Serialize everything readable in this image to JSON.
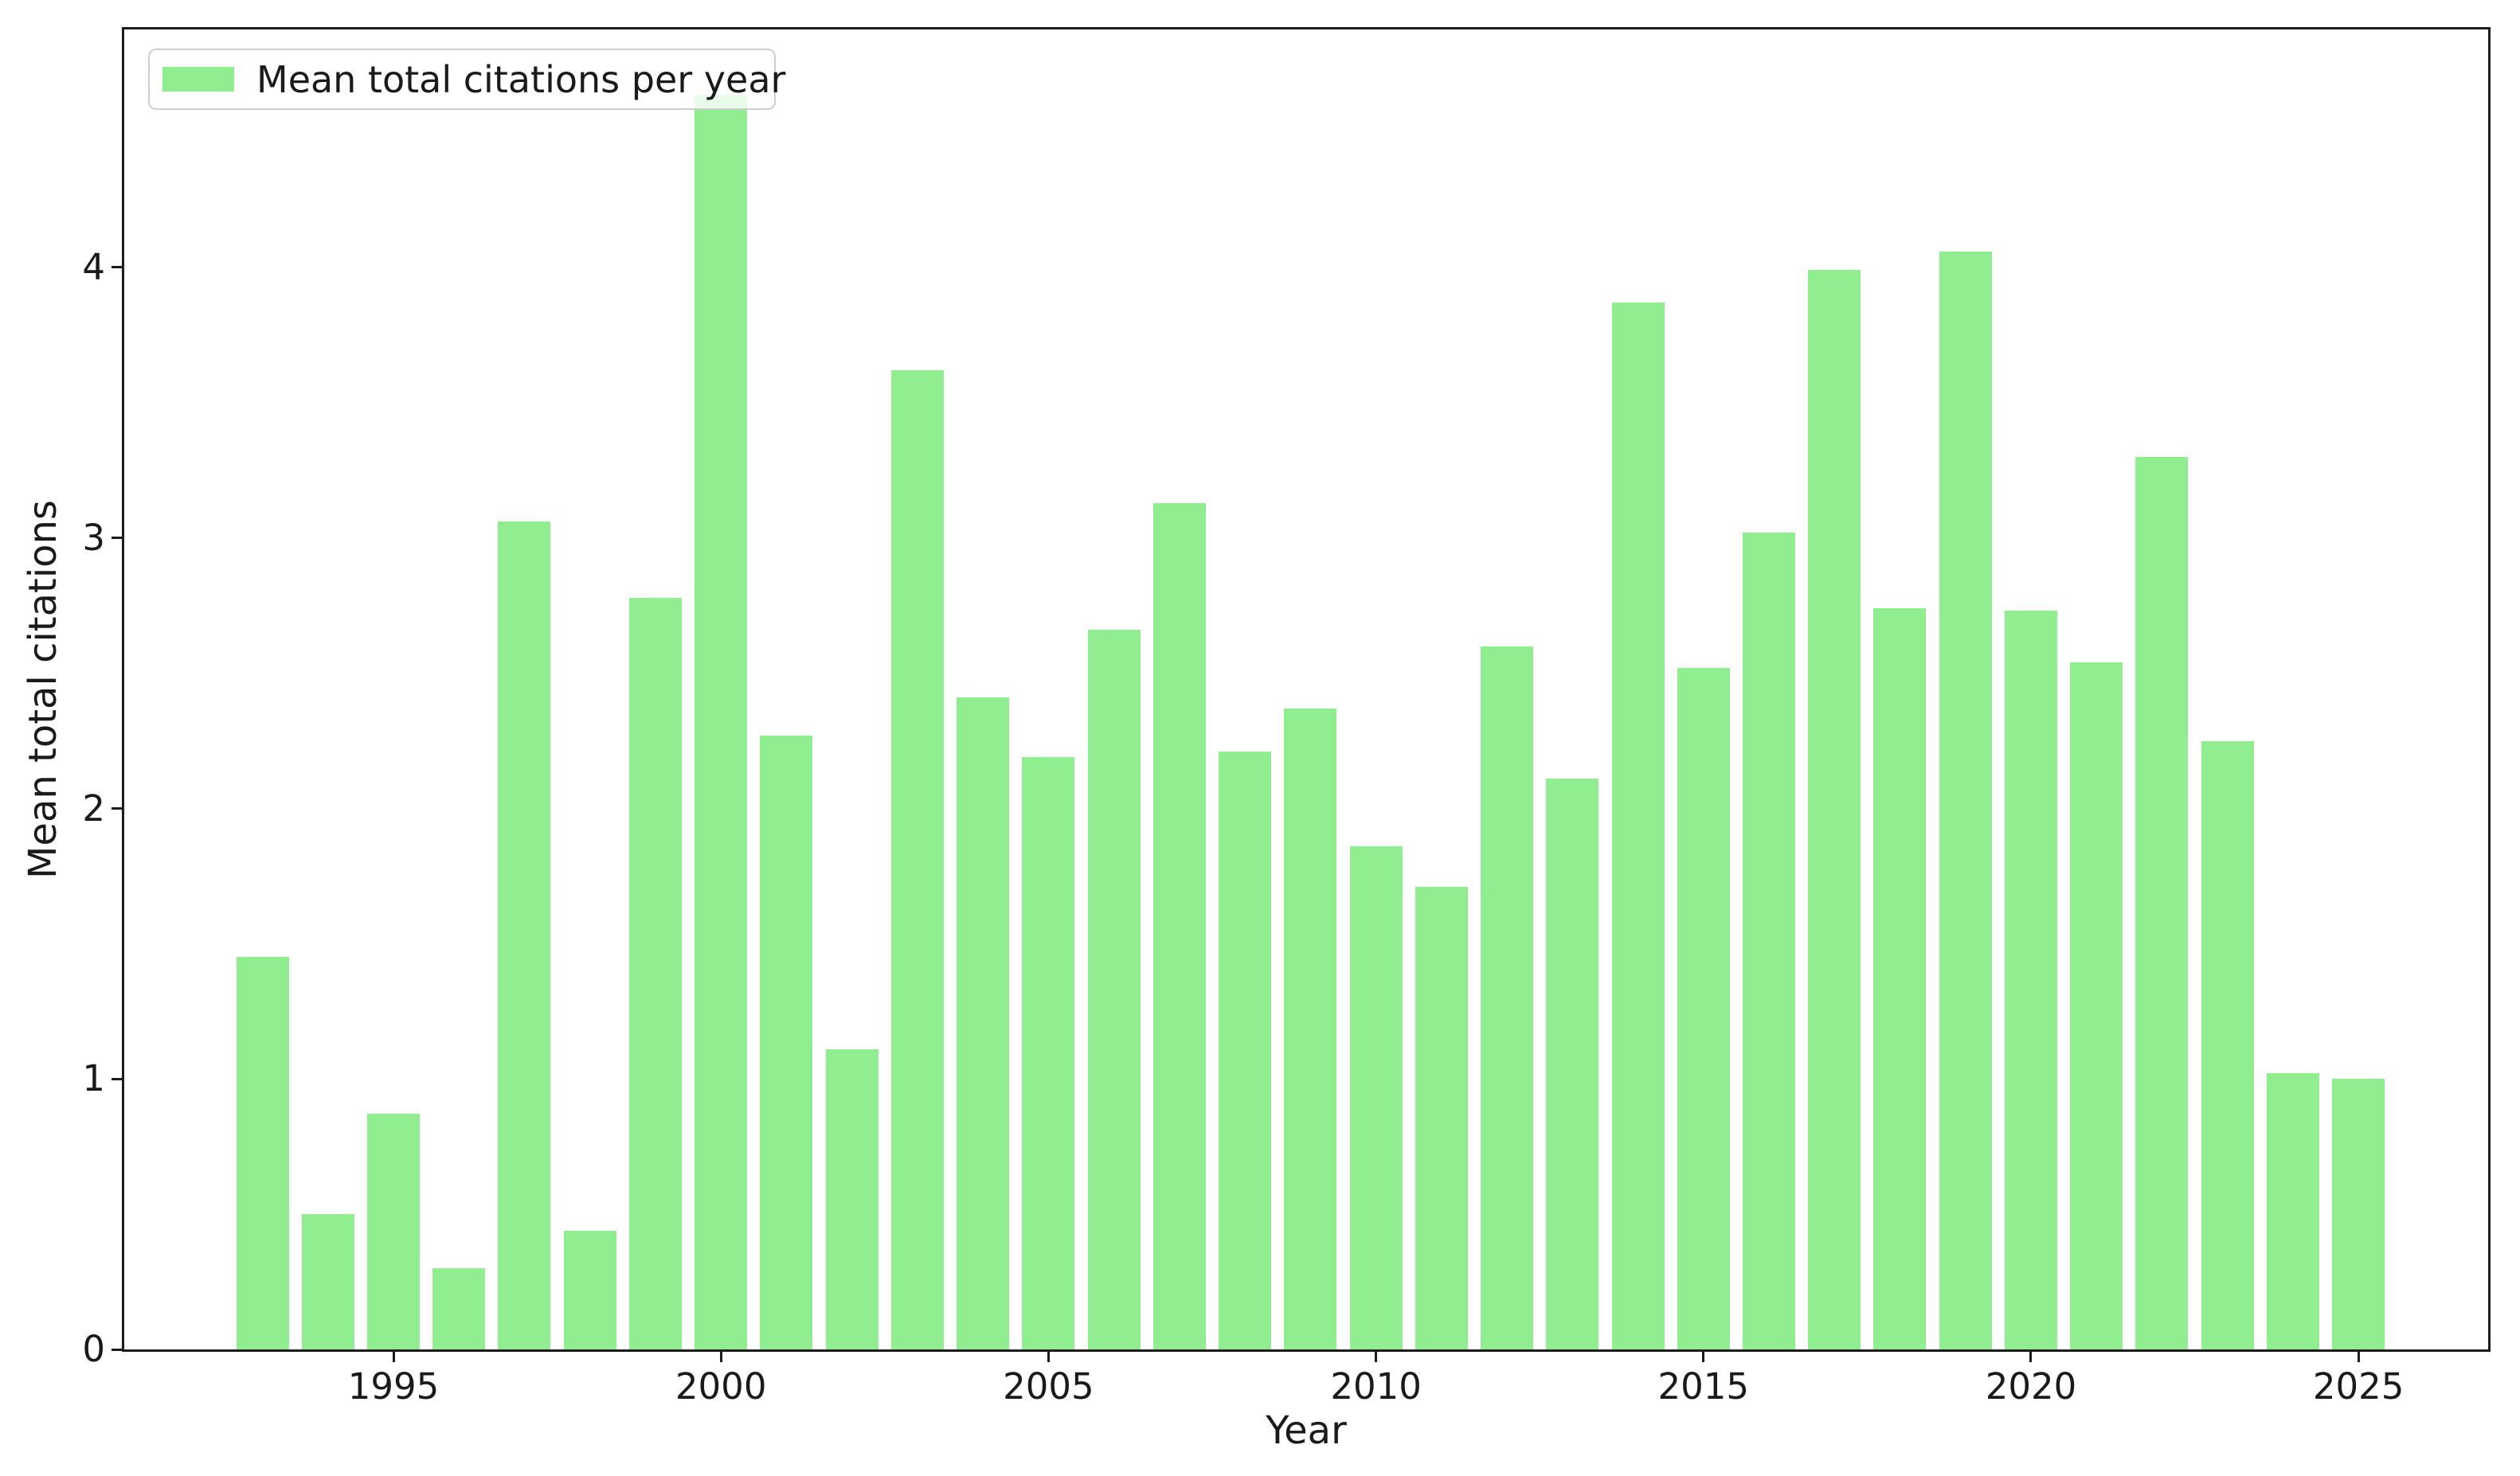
{
  "figure": {
    "background": "#ffffff",
    "frame_color": "#1c1c1c",
    "text_color": "#1a1a1a"
  },
  "legend": {
    "label": "Mean total citations per year",
    "swatch_color": "#90EE90"
  },
  "axes": {
    "xlabel": "Year",
    "ylabel": "Mean total citations"
  },
  "chart_data": {
    "type": "bar",
    "title": "",
    "xlabel": "Year",
    "ylabel": "Mean total citations",
    "legend": [
      "Mean total citations per year"
    ],
    "legend_position": "upper left",
    "grid": false,
    "bar_color": "#90EE90",
    "bar_width_years": 0.8,
    "xlim": [
      1990.89,
      2026.98
    ],
    "ylim": [
      0,
      4.88
    ],
    "x_ticks": [
      1995,
      2000,
      2005,
      2010,
      2015,
      2020,
      2025
    ],
    "y_ticks": [
      0,
      1,
      2,
      3,
      4
    ],
    "categories": [
      1993,
      1994,
      1995,
      1996,
      1997,
      1998,
      1999,
      2000,
      2001,
      2002,
      2003,
      2004,
      2005,
      2006,
      2007,
      2008,
      2009,
      2010,
      2011,
      2012,
      2013,
      2014,
      2015,
      2016,
      2017,
      2018,
      2019,
      2020,
      2021,
      2022,
      2023,
      2024,
      2025
    ],
    "values": [
      1.45,
      0.5,
      0.87,
      0.3,
      3.06,
      0.44,
      2.78,
      4.64,
      2.27,
      1.11,
      3.62,
      2.41,
      2.19,
      2.66,
      3.13,
      2.21,
      2.37,
      1.86,
      1.71,
      2.6,
      2.11,
      3.87,
      2.52,
      3.02,
      3.99,
      2.74,
      4.06,
      2.73,
      2.54,
      3.3,
      2.25,
      1.02,
      1.0
    ]
  }
}
